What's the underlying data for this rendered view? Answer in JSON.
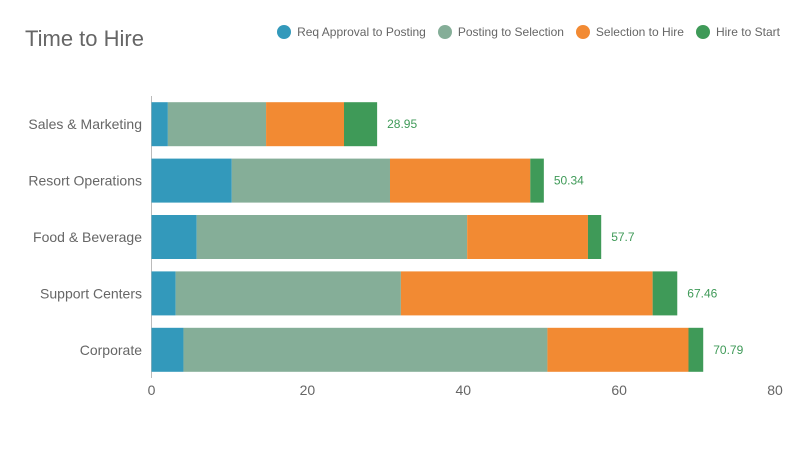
{
  "chart_data": {
    "type": "bar",
    "orientation": "horizontal",
    "stacked": true,
    "title": "Time to Hire",
    "categories": [
      "Sales & Marketing",
      "Resort Operations",
      "Food & Beverage",
      "Support Centers",
      "Corporate"
    ],
    "series": [
      {
        "name": "Req Approval to Posting",
        "color": "#3399bb",
        "values": [
          2.1,
          10.3,
          5.8,
          3.1,
          4.1
        ]
      },
      {
        "name": "Posting to Selection",
        "color": "#85ae98",
        "values": [
          12.6,
          20.3,
          34.7,
          28.9,
          46.7
        ]
      },
      {
        "name": "Selection to Hire",
        "color": "#f28a33",
        "values": [
          10.0,
          18.0,
          15.5,
          32.3,
          18.1
        ]
      },
      {
        "name": "Hire to Start",
        "color": "#3f9a58",
        "values": [
          4.25,
          1.74,
          1.7,
          3.16,
          1.89
        ]
      }
    ],
    "totals": [
      "28.95",
      "50.34",
      "57.7",
      "67.46",
      "70.79"
    ],
    "xlim": [
      0,
      80
    ],
    "xticks": [
      "0",
      "20",
      "40",
      "60",
      "80"
    ],
    "grid": false,
    "legend": "top-right",
    "total_label_color": "#3f9a58"
  }
}
